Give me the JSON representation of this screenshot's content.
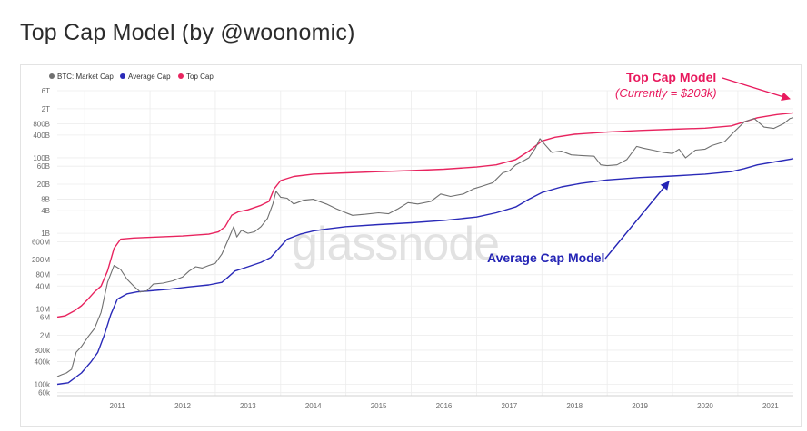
{
  "page": {
    "title": "Top Cap Model (by @woonomic)"
  },
  "colors": {
    "market_cap": "#707070",
    "average_cap": "#2a2ab8",
    "top_cap": "#e8245f",
    "annotation_top": "#e8195d",
    "annotation_avg": "#2424b5",
    "grid": "#ececec"
  },
  "watermark": "glassnode",
  "annotations": {
    "top_cap_title": "Top Cap Model",
    "top_cap_sub": "(Currently = $203k)",
    "average_cap": "Average Cap Model"
  },
  "chart_data": {
    "type": "line",
    "title": "",
    "xlabel": "",
    "ylabel": "",
    "yscale": "log",
    "ylim": [
      50000,
      6000000000000
    ],
    "xlim": [
      2010.58,
      2021.85
    ],
    "grid": true,
    "legend_position": "top-left",
    "x_ticks": [
      "2011",
      "2012",
      "2013",
      "2014",
      "2015",
      "2016",
      "2017",
      "2018",
      "2019",
      "2020",
      "2021"
    ],
    "y_ticks": [
      {
        "label": "6T",
        "value": 6000000000000.0
      },
      {
        "label": "2T",
        "value": 2000000000000.0
      },
      {
        "label": "800B",
        "value": 800000000000.0
      },
      {
        "label": "400B",
        "value": 400000000000.0
      },
      {
        "label": "100B",
        "value": 100000000000.0
      },
      {
        "label": "60B",
        "value": 60000000000.0
      },
      {
        "label": "20B",
        "value": 20000000000.0
      },
      {
        "label": "8B",
        "value": 8000000000.0
      },
      {
        "label": "4B",
        "value": 4000000000.0
      },
      {
        "label": "1B",
        "value": 1000000000.0
      },
      {
        "label": "600M",
        "value": 600000000.0
      },
      {
        "label": "200M",
        "value": 200000000.0
      },
      {
        "label": "80M",
        "value": 80000000.0
      },
      {
        "label": "40M",
        "value": 40000000.0
      },
      {
        "label": "10M",
        "value": 10000000.0
      },
      {
        "label": "6M",
        "value": 6000000.0
      },
      {
        "label": "2M",
        "value": 2000000.0
      },
      {
        "label": "800k",
        "value": 800000.0
      },
      {
        "label": "400k",
        "value": 400000.0
      },
      {
        "label": "100k",
        "value": 100000.0
      },
      {
        "label": "60k",
        "value": 60000.0
      }
    ],
    "series": [
      {
        "name": "BTC: Market Cap",
        "color": "#707070",
        "points": [
          [
            2010.58,
            160000
          ],
          [
            2010.65,
            180000
          ],
          [
            2010.72,
            200000
          ],
          [
            2010.8,
            250000
          ],
          [
            2010.87,
            700000
          ],
          [
            2010.95,
            1000000
          ],
          [
            2011.05,
            1800000
          ],
          [
            2011.15,
            3000000
          ],
          [
            2011.25,
            8000000
          ],
          [
            2011.35,
            50000000
          ],
          [
            2011.45,
            140000000
          ],
          [
            2011.55,
            110000000
          ],
          [
            2011.65,
            60000000
          ],
          [
            2011.75,
            40000000
          ],
          [
            2011.85,
            28000000
          ],
          [
            2011.95,
            30000000
          ],
          [
            2012.05,
            45000000
          ],
          [
            2012.2,
            48000000
          ],
          [
            2012.35,
            55000000
          ],
          [
            2012.5,
            70000000
          ],
          [
            2012.6,
            100000000
          ],
          [
            2012.7,
            130000000
          ],
          [
            2012.8,
            120000000
          ],
          [
            2012.9,
            140000000
          ],
          [
            2013.0,
            160000000
          ],
          [
            2013.1,
            280000000
          ],
          [
            2013.2,
            700000000
          ],
          [
            2013.28,
            1500000000
          ],
          [
            2013.33,
            800000000
          ],
          [
            2013.4,
            1200000000
          ],
          [
            2013.5,
            1000000000
          ],
          [
            2013.6,
            1100000000
          ],
          [
            2013.7,
            1500000000
          ],
          [
            2013.8,
            2500000000
          ],
          [
            2013.88,
            6000000000
          ],
          [
            2013.93,
            13000000000
          ],
          [
            2014.0,
            9000000000
          ],
          [
            2014.1,
            8500000000
          ],
          [
            2014.2,
            6000000000
          ],
          [
            2014.35,
            7500000000
          ],
          [
            2014.5,
            8000000000
          ],
          [
            2014.7,
            6000000000
          ],
          [
            2014.85,
            4500000000
          ],
          [
            2015.0,
            3500000000
          ],
          [
            2015.1,
            3000000000
          ],
          [
            2015.3,
            3200000000
          ],
          [
            2015.5,
            3500000000
          ],
          [
            2015.65,
            3300000000
          ],
          [
            2015.8,
            4500000000
          ],
          [
            2015.95,
            6500000000
          ],
          [
            2016.1,
            6000000000
          ],
          [
            2016.3,
            7000000000
          ],
          [
            2016.45,
            11000000000
          ],
          [
            2016.6,
            9500000000
          ],
          [
            2016.8,
            11000000000
          ],
          [
            2016.95,
            15000000000
          ],
          [
            2017.1,
            18000000000
          ],
          [
            2017.25,
            22000000000
          ],
          [
            2017.4,
            40000000000
          ],
          [
            2017.5,
            45000000000
          ],
          [
            2017.6,
            65000000000
          ],
          [
            2017.7,
            80000000000
          ],
          [
            2017.8,
            100000000000
          ],
          [
            2017.9,
            180000000000
          ],
          [
            2017.97,
            320000000000
          ],
          [
            2018.05,
            220000000000
          ],
          [
            2018.15,
            140000000000
          ],
          [
            2018.3,
            150000000000
          ],
          [
            2018.45,
            120000000000
          ],
          [
            2018.6,
            115000000000
          ],
          [
            2018.8,
            110000000000
          ],
          [
            2018.9,
            65000000000
          ],
          [
            2019.0,
            62000000000
          ],
          [
            2019.15,
            65000000000
          ],
          [
            2019.3,
            90000000000
          ],
          [
            2019.45,
            200000000000
          ],
          [
            2019.55,
            180000000000
          ],
          [
            2019.7,
            160000000000
          ],
          [
            2019.85,
            140000000000
          ],
          [
            2020.0,
            130000000000
          ],
          [
            2020.1,
            170000000000
          ],
          [
            2020.2,
            100000000000
          ],
          [
            2020.35,
            160000000000
          ],
          [
            2020.5,
            170000000000
          ],
          [
            2020.6,
            210000000000
          ],
          [
            2020.8,
            270000000000
          ],
          [
            2020.95,
            500000000000
          ],
          [
            2021.1,
            900000000000
          ],
          [
            2021.25,
            1100000000000
          ],
          [
            2021.4,
            650000000000
          ],
          [
            2021.55,
            600000000000
          ],
          [
            2021.7,
            800000000000
          ],
          [
            2021.8,
            1100000000000
          ],
          [
            2021.85,
            1150000000000
          ]
        ]
      },
      {
        "name": "Average Cap",
        "color": "#2a2ab8",
        "points": [
          [
            2010.58,
            100000
          ],
          [
            2010.75,
            110000
          ],
          [
            2010.95,
            200000
          ],
          [
            2011.1,
            400000
          ],
          [
            2011.2,
            700000
          ],
          [
            2011.3,
            2000000
          ],
          [
            2011.4,
            7000000
          ],
          [
            2011.5,
            18000000
          ],
          [
            2011.65,
            25000000
          ],
          [
            2011.8,
            28000000
          ],
          [
            2012.0,
            30000000
          ],
          [
            2012.3,
            33000000
          ],
          [
            2012.6,
            38000000
          ],
          [
            2012.9,
            43000000
          ],
          [
            2013.1,
            50000000
          ],
          [
            2013.2,
            70000000
          ],
          [
            2013.3,
            100000000
          ],
          [
            2013.5,
            130000000
          ],
          [
            2013.7,
            170000000
          ],
          [
            2013.85,
            230000000
          ],
          [
            2014.0,
            450000000
          ],
          [
            2014.1,
            700000000
          ],
          [
            2014.3,
            950000000
          ],
          [
            2014.5,
            1150000000
          ],
          [
            2014.7,
            1300000000
          ],
          [
            2015.0,
            1500000000
          ],
          [
            2015.5,
            1700000000
          ],
          [
            2016.0,
            1900000000
          ],
          [
            2016.5,
            2200000000
          ],
          [
            2017.0,
            2700000000
          ],
          [
            2017.3,
            3500000000
          ],
          [
            2017.6,
            5000000000
          ],
          [
            2017.8,
            8000000000
          ],
          [
            2018.0,
            12000000000
          ],
          [
            2018.3,
            17000000000
          ],
          [
            2018.6,
            21000000000
          ],
          [
            2019.0,
            26000000000
          ],
          [
            2019.5,
            30000000000
          ],
          [
            2020.0,
            33000000000
          ],
          [
            2020.5,
            37000000000
          ],
          [
            2020.9,
            43000000000
          ],
          [
            2021.1,
            52000000000
          ],
          [
            2021.3,
            65000000000
          ],
          [
            2021.6,
            80000000000
          ],
          [
            2021.85,
            95000000000
          ]
        ]
      },
      {
        "name": "Top Cap",
        "color": "#e8245f",
        "points": [
          [
            2010.58,
            6000000
          ],
          [
            2010.7,
            6500000
          ],
          [
            2010.85,
            9000000
          ],
          [
            2010.95,
            12000000
          ],
          [
            2011.05,
            18000000
          ],
          [
            2011.15,
            28000000
          ],
          [
            2011.25,
            40000000
          ],
          [
            2011.35,
            100000000
          ],
          [
            2011.45,
            400000000
          ],
          [
            2011.55,
            700000000
          ],
          [
            2011.75,
            750000000
          ],
          [
            2012.0,
            780000000
          ],
          [
            2012.5,
            850000000
          ],
          [
            2012.9,
            950000000
          ],
          [
            2013.05,
            1100000000
          ],
          [
            2013.15,
            1500000000
          ],
          [
            2013.25,
            3000000000
          ],
          [
            2013.35,
            3700000000
          ],
          [
            2013.5,
            4200000000
          ],
          [
            2013.7,
            5500000000
          ],
          [
            2013.82,
            7000000000
          ],
          [
            2013.9,
            15000000000
          ],
          [
            2014.0,
            25000000000
          ],
          [
            2014.2,
            32000000000
          ],
          [
            2014.5,
            37000000000
          ],
          [
            2015.0,
            40000000000
          ],
          [
            2015.5,
            43000000000
          ],
          [
            2016.0,
            46000000000
          ],
          [
            2016.5,
            50000000000
          ],
          [
            2017.0,
            57000000000
          ],
          [
            2017.3,
            65000000000
          ],
          [
            2017.6,
            90000000000
          ],
          [
            2017.8,
            150000000000
          ],
          [
            2018.0,
            280000000000
          ],
          [
            2018.2,
            350000000000
          ],
          [
            2018.5,
            420000000000
          ],
          [
            2019.0,
            480000000000
          ],
          [
            2019.5,
            530000000000
          ],
          [
            2020.0,
            570000000000
          ],
          [
            2020.5,
            610000000000
          ],
          [
            2020.9,
            700000000000
          ],
          [
            2021.1,
            900000000000
          ],
          [
            2021.3,
            1150000000000
          ],
          [
            2021.6,
            1400000000000
          ],
          [
            2021.85,
            1550000000000
          ]
        ]
      }
    ]
  }
}
